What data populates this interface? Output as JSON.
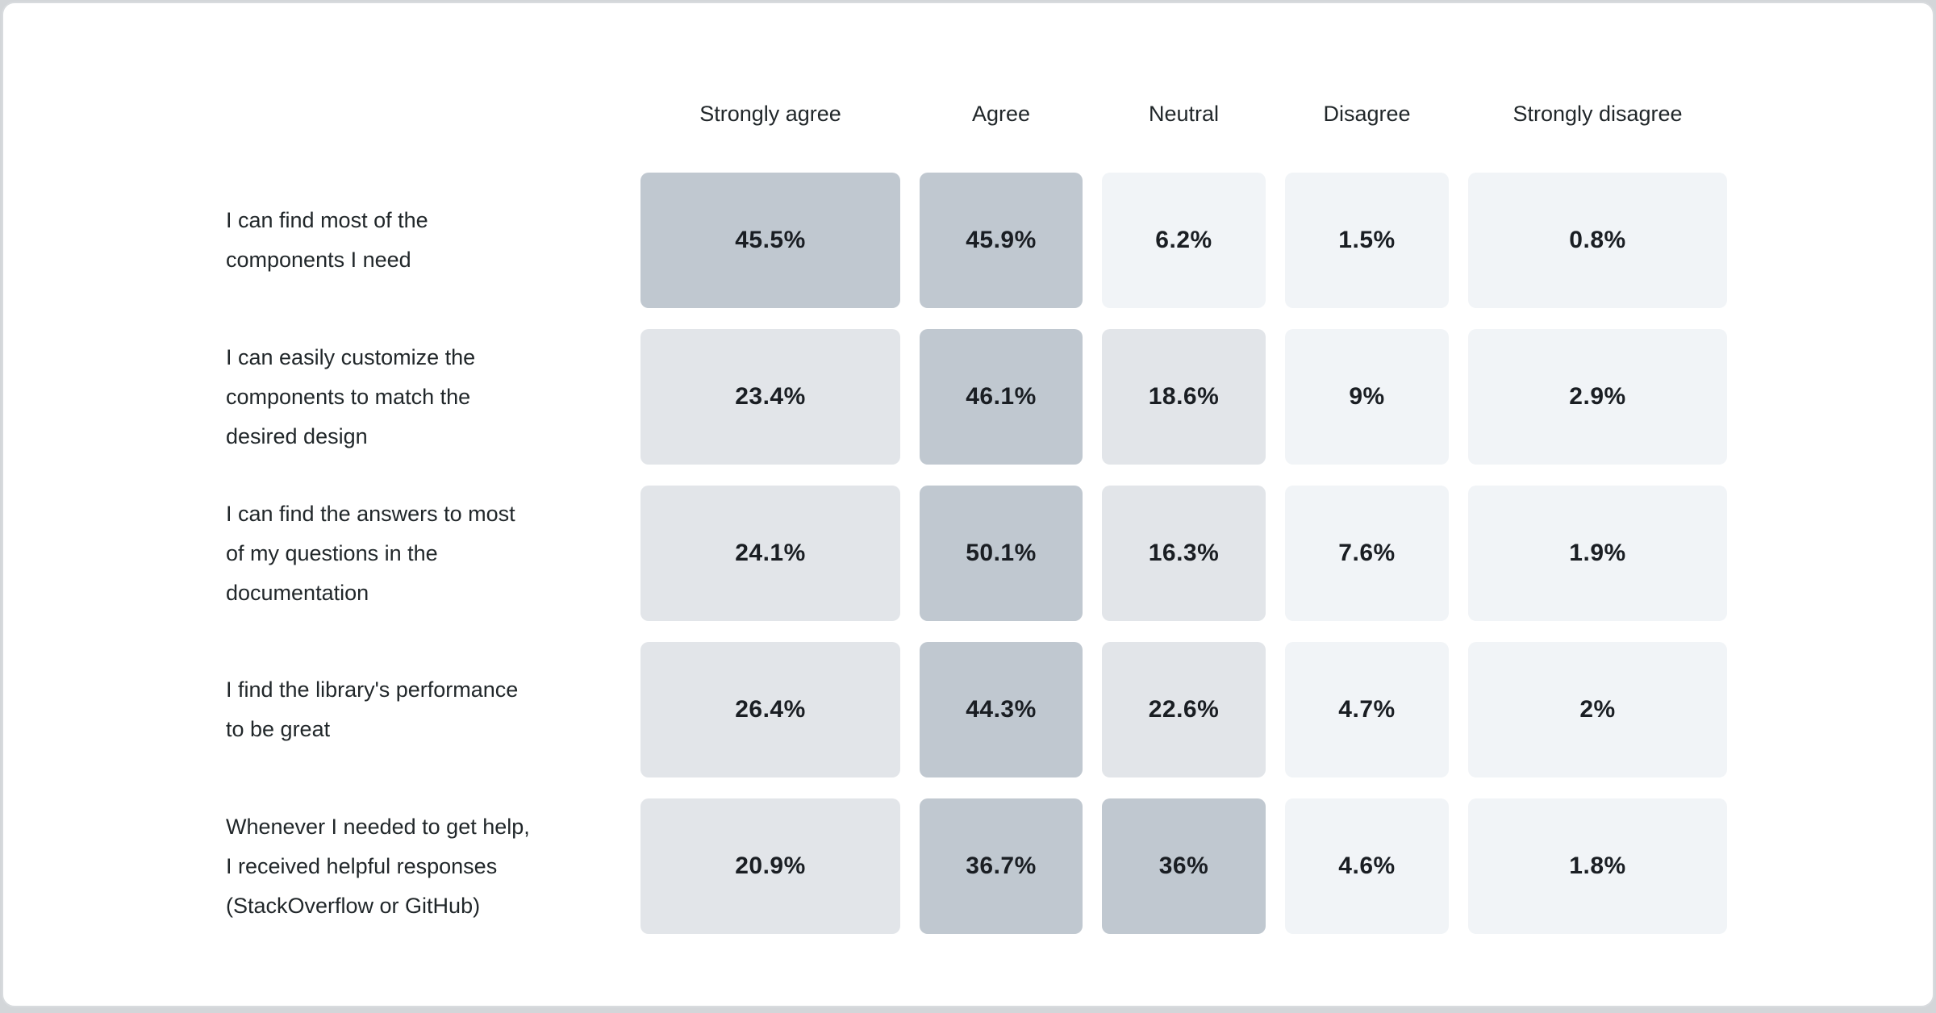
{
  "palette": {
    "cell_dark": "#c0c8d0",
    "cell_medium": "#e2e5e9",
    "cell_light": "#f1f4f7",
    "label_text": "#21272a",
    "value_text": "#1a1e23",
    "card_background": "#ffffff",
    "card_border": "#d8dbde",
    "page_background": "#d3d6d9"
  },
  "chart_data": {
    "type": "heatmap",
    "title": "",
    "legend_position": "none",
    "grid": false,
    "columns": [
      "Strongly agree",
      "Agree",
      "Neutral",
      "Disagree",
      "Strongly disagree"
    ],
    "shade_rule": {
      "dark_min": 30,
      "medium_min": 10
    },
    "rows": [
      {
        "label": "I can find most of the components I need",
        "label_lines": [
          "I can find most of the",
          "components I need"
        ],
        "values": [
          45.5,
          45.9,
          6.2,
          1.5,
          0.8
        ],
        "display": [
          "45.5%",
          "45.9%",
          "6.2%",
          "1.5%",
          "0.8%"
        ]
      },
      {
        "label": "I can easily customize the components to match the desired design",
        "label_lines": [
          "I can easily customize the",
          "components to match the",
          "desired design"
        ],
        "values": [
          23.4,
          46.1,
          18.6,
          9,
          2.9
        ],
        "display": [
          "23.4%",
          "46.1%",
          "18.6%",
          "9%",
          "2.9%"
        ]
      },
      {
        "label": "I can find the answers to most of my questions in the documentation",
        "label_lines": [
          "I can find the answers to most",
          "of my questions in the",
          "documentation"
        ],
        "values": [
          24.1,
          50.1,
          16.3,
          7.6,
          1.9
        ],
        "display": [
          "24.1%",
          "50.1%",
          "16.3%",
          "7.6%",
          "1.9%"
        ]
      },
      {
        "label": "I find the library's performance to be great",
        "label_lines": [
          "I find the library's performance",
          "to be great"
        ],
        "values": [
          26.4,
          44.3,
          22.6,
          4.7,
          2
        ],
        "display": [
          "26.4%",
          "44.3%",
          "22.6%",
          "4.7%",
          "2%"
        ]
      },
      {
        "label": "Whenever I needed to get help, I received helpful responses (StackOverflow or GitHub)",
        "label_lines": [
          "Whenever I needed to get help,",
          "I received helpful responses",
          "(StackOverflow or GitHub)"
        ],
        "values": [
          20.9,
          36.7,
          36,
          4.6,
          1.8
        ],
        "display": [
          "20.9%",
          "36.7%",
          "36%",
          "4.6%",
          "1.8%"
        ]
      }
    ]
  }
}
